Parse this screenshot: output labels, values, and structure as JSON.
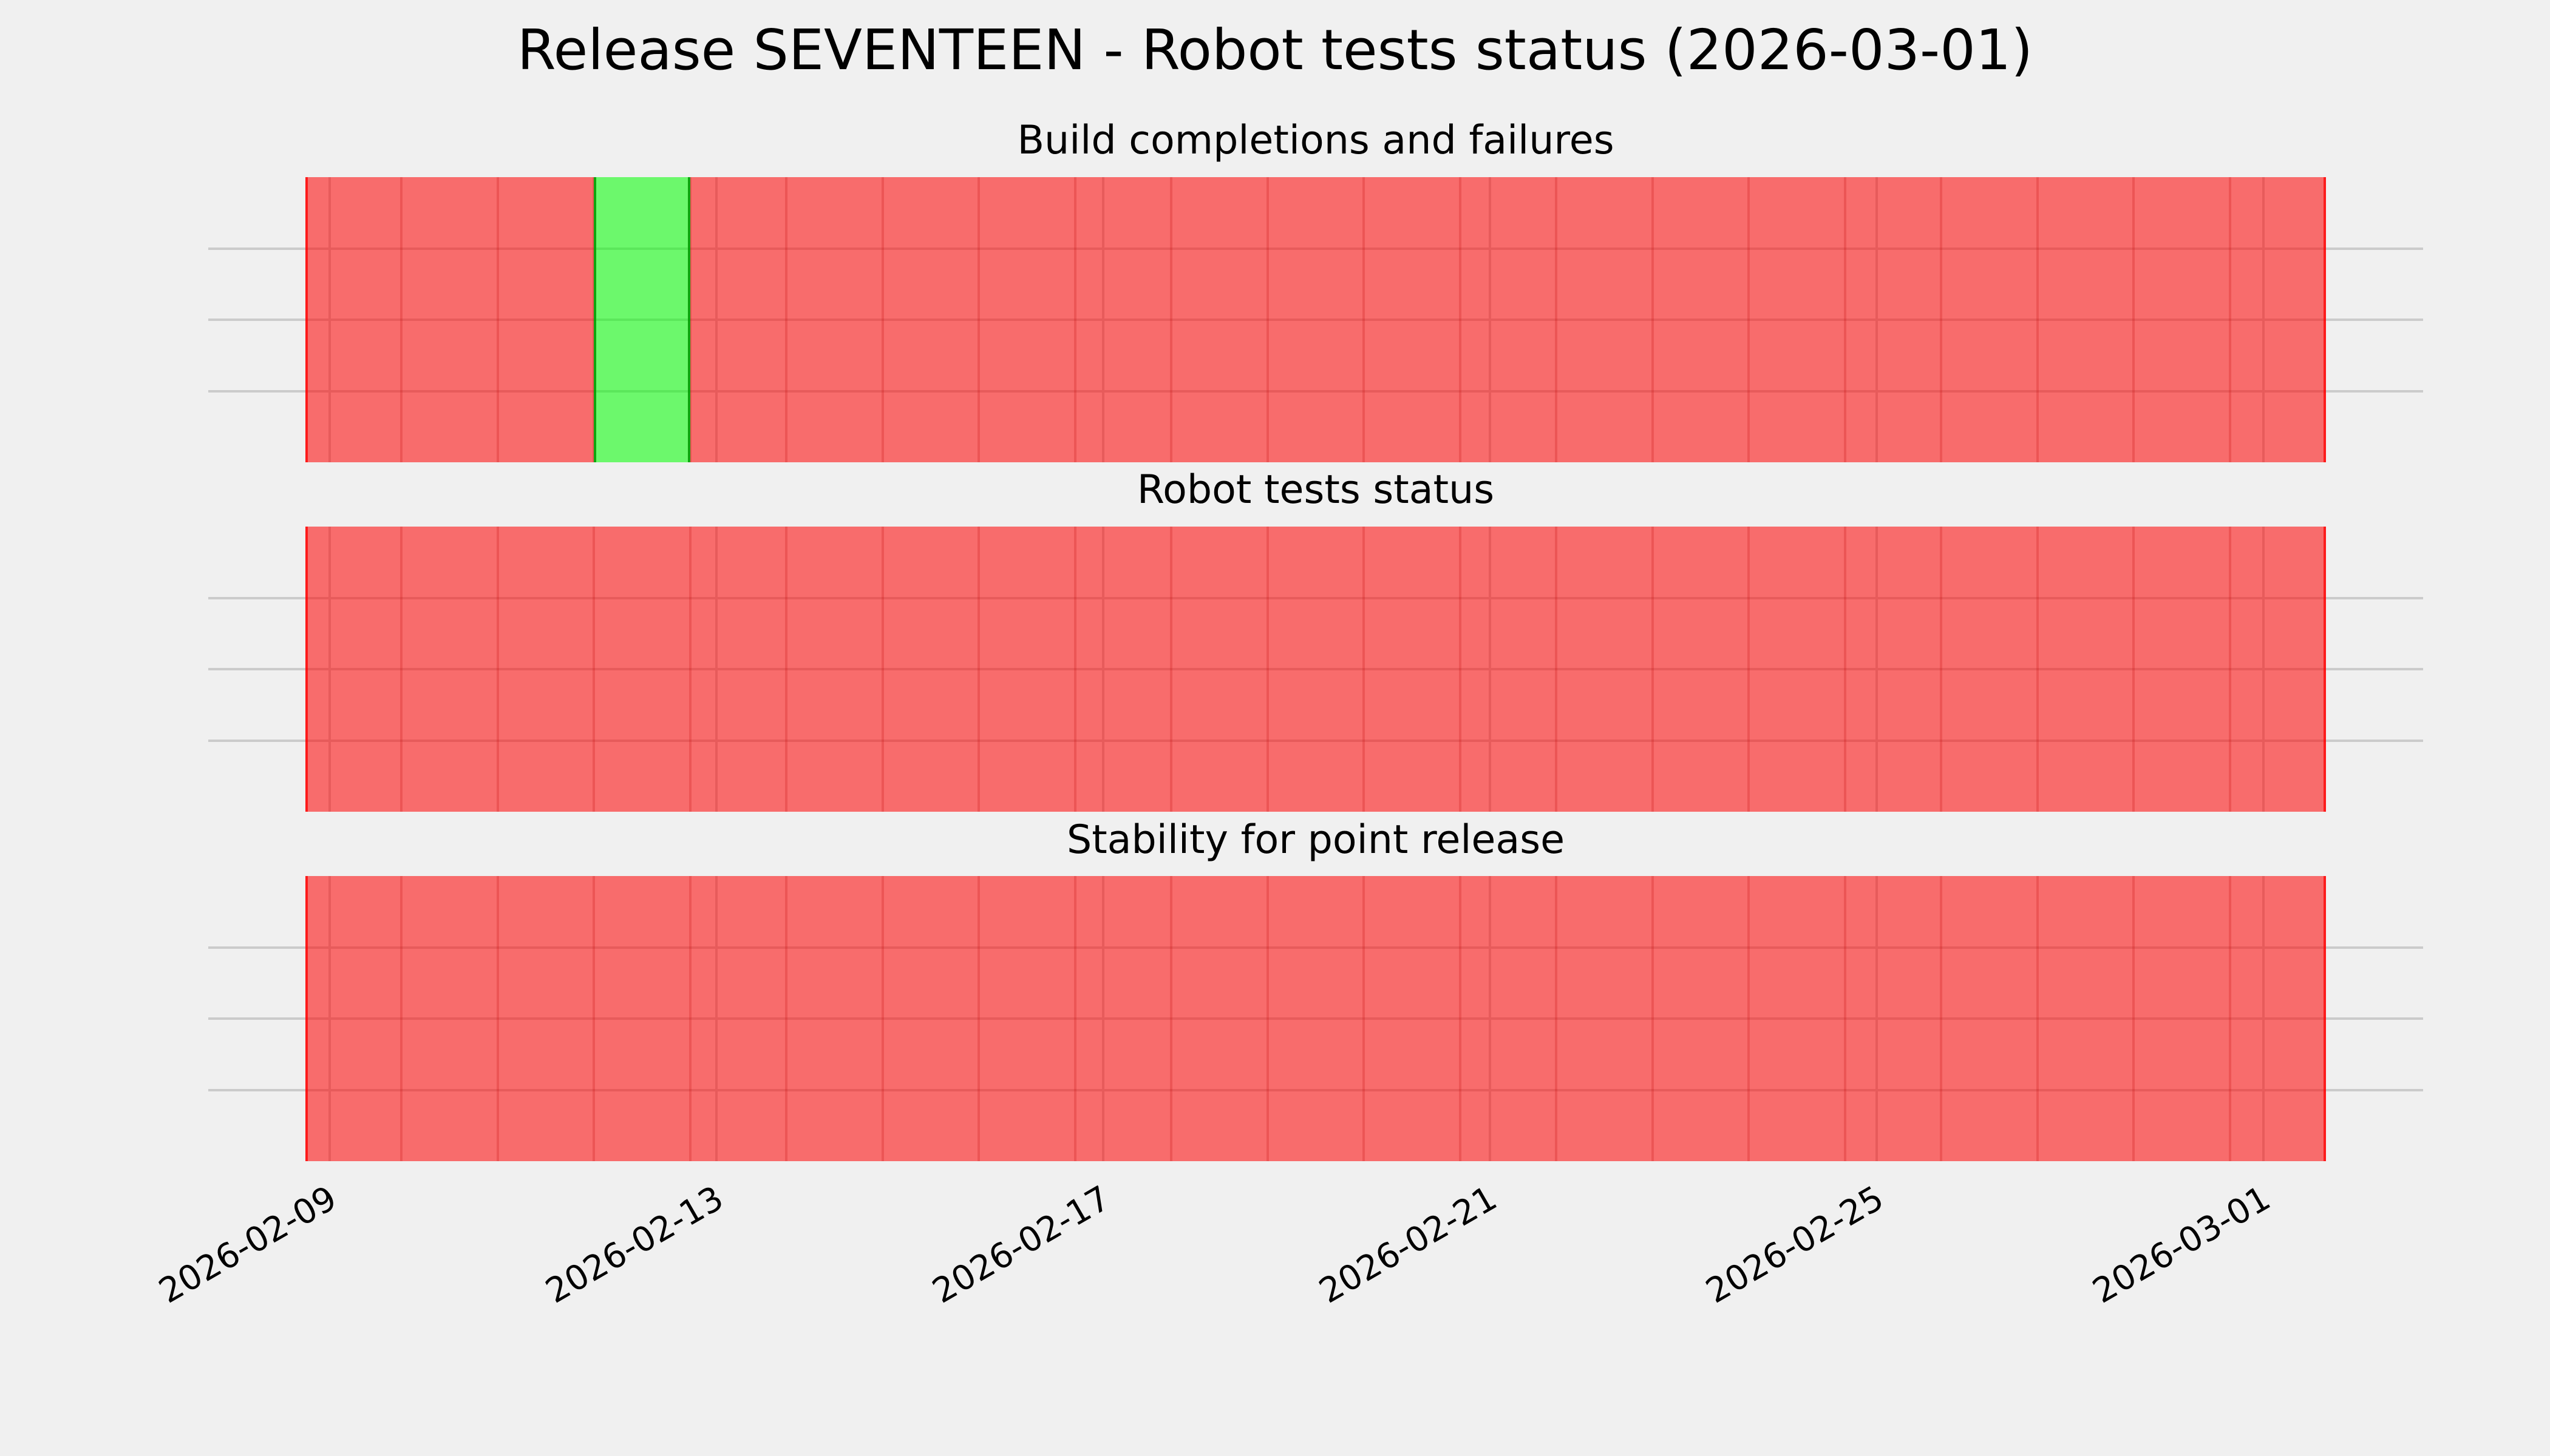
{
  "figure": {
    "background_color": "#f0f0f0",
    "gridline_color": "#cbcbcb"
  },
  "chart_data": {
    "type": "bar",
    "title": "Release SEVENTEEN - Robot tests status (2026-03-01)",
    "x_type": "date",
    "x_tick_labels": [
      "2026-02-09",
      "2026-02-13",
      "2026-02-17",
      "2026-02-21",
      "2026-02-25",
      "2026-03-01"
    ],
    "x_tick_rotation_deg": 30,
    "x_range": [
      "2026-02-09",
      "2026-03-01"
    ],
    "grid": {
      "horizontal_fractions": [
        0.25,
        0.5,
        0.75
      ],
      "vertical_at_ticks": true,
      "color": "#cbcbcb"
    },
    "status_colors": {
      "fail_fill": "rgba(255,0,0,0.55)",
      "pass_fill": "rgba(0,255,0,0.55)",
      "fail_hex_on_bg": "#f86c6c",
      "pass_hex_on_bg": "#6cf86c"
    },
    "bar_height": "full",
    "dates": [
      "2026-02-09",
      "2026-02-10",
      "2026-02-11",
      "2026-02-12",
      "2026-02-13",
      "2026-02-14",
      "2026-02-15",
      "2026-02-16",
      "2026-02-17",
      "2026-02-18",
      "2026-02-19",
      "2026-02-20",
      "2026-02-21",
      "2026-02-22",
      "2026-02-23",
      "2026-02-24",
      "2026-02-25",
      "2026-02-26",
      "2026-02-27",
      "2026-02-28",
      "2026-03-01"
    ],
    "subplots": [
      {
        "title": "Build completions and failures",
        "statuses": [
          "fail",
          "fail",
          "fail",
          "pass",
          "fail",
          "fail",
          "fail",
          "fail",
          "fail",
          "fail",
          "fail",
          "fail",
          "fail",
          "fail",
          "fail",
          "fail",
          "fail",
          "fail",
          "fail",
          "fail",
          "fail"
        ]
      },
      {
        "title": "Robot tests status",
        "statuses": [
          "fail",
          "fail",
          "fail",
          "fail",
          "fail",
          "fail",
          "fail",
          "fail",
          "fail",
          "fail",
          "fail",
          "fail",
          "fail",
          "fail",
          "fail",
          "fail",
          "fail",
          "fail",
          "fail",
          "fail",
          "fail"
        ]
      },
      {
        "title": "Stability for point release",
        "statuses": [
          "fail",
          "fail",
          "fail",
          "fail",
          "fail",
          "fail",
          "fail",
          "fail",
          "fail",
          "fail",
          "fail",
          "fail",
          "fail",
          "fail",
          "fail",
          "fail",
          "fail",
          "fail",
          "fail",
          "fail",
          "fail"
        ]
      }
    ]
  }
}
